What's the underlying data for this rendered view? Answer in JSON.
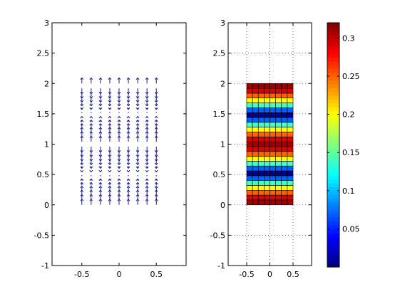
{
  "chart_data": [
    {
      "type": "quiver",
      "title": "",
      "xlabel": "",
      "ylabel": "",
      "xlim": [
        -0.9,
        0.9
      ],
      "ylim": [
        -1,
        3
      ],
      "xticks": [
        -0.5,
        0,
        0.5
      ],
      "xtick_labels": [
        "-0.5",
        "0",
        "0.5"
      ],
      "yticks": [
        -1,
        -0.5,
        0,
        0.5,
        1,
        1.5,
        2,
        2.5,
        3
      ],
      "ytick_labels": [
        "-1",
        "-0.5",
        "0",
        "0.5",
        "1",
        "1.5",
        "2",
        "2.5",
        "3"
      ],
      "grid": false,
      "x_positions": [
        -0.5,
        -0.375,
        -0.25,
        -0.125,
        0,
        0.125,
        0.25,
        0.375,
        0.5
      ],
      "y_range": [
        0,
        2
      ],
      "y_step": 0.08,
      "arrow_direction": "vertical",
      "color": "#1a1a8c"
    },
    {
      "type": "heatmap",
      "title": "",
      "xlabel": "",
      "ylabel": "",
      "xlim": [
        -0.9,
        0.9
      ],
      "ylim": [
        -1,
        3
      ],
      "xticks": [
        -0.5,
        0,
        0.5
      ],
      "xtick_labels": [
        "-0.5",
        "0",
        "0.5"
      ],
      "yticks": [
        -1,
        -0.5,
        0,
        0.5,
        1,
        1.5,
        2,
        2.5,
        3
      ],
      "ytick_labels": [
        "-1",
        "-0.5",
        "0",
        "0.5",
        "1",
        "1.5",
        "2",
        "2.5",
        "3"
      ],
      "grid": true,
      "x_range": [
        -0.5,
        0.5
      ],
      "y_range": [
        0,
        2
      ],
      "n_cols": 8,
      "n_rows": 25,
      "row_values_bottom_to_top": [
        0.31,
        0.29,
        0.25,
        0.2,
        0.14,
        0.07,
        0.005,
        0.07,
        0.14,
        0.2,
        0.25,
        0.29,
        0.31,
        0.29,
        0.25,
        0.2,
        0.14,
        0.07,
        0.005,
        0.07,
        0.14,
        0.2,
        0.25,
        0.29,
        0.31
      ]
    }
  ],
  "colorbar": {
    "colormap": "jet",
    "range": [
      0,
      0.32
    ],
    "ticks": [
      0.05,
      0.1,
      0.15,
      0.2,
      0.25,
      0.3
    ],
    "tick_labels": [
      "0.05",
      "0.1",
      "0.15",
      "0.2",
      "0.25",
      "0.3"
    ]
  }
}
